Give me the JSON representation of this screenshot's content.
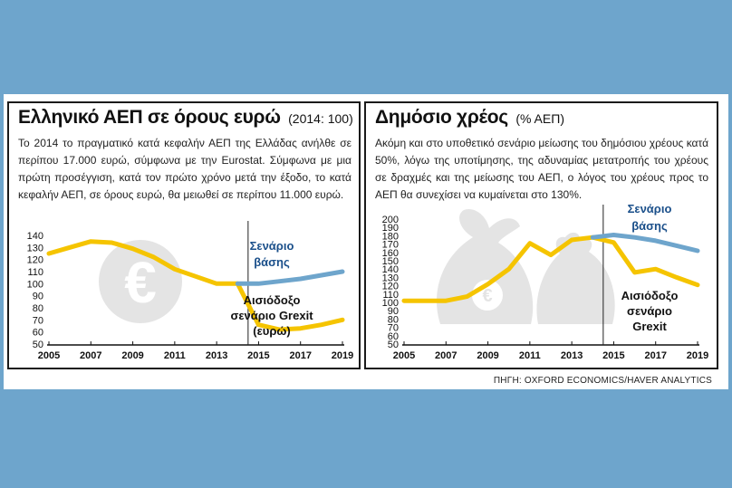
{
  "left": {
    "title": "Ελληνικό ΑΕΠ σε όρους ευρώ",
    "unit": "(2014: 100)",
    "description": "Το 2014 το πραγματικό κατά κεφαλήν ΑΕΠ της Ελλάδας ανήλθε σε περίπου 17.000 ευρώ, σύμφωνα με την Eurostat. Σύμφωνα με μια πρώτη προσέγγιση, κατά τον πρώτο χρόνο μετά την έξοδο, το κατά κεφαλήν ΑΕΠ, σε όρους ευρώ, θα μειωθεί σε περίπου 11.000 ευρώ."
  },
  "right": {
    "title": "Δημόσιο χρέος",
    "unit": "(% ΑΕΠ)",
    "description": "Ακόμη και στο υποθετικό σενάριο μείωσης του δημόσιου χρέους κατά 50%, λόγω της υποτίμησης, της αδυναμίας μετατροπής του χρέους σε δραχμές και της μείωσης του ΑΕΠ, ο λόγος του χρέους προς το ΑΕΠ θα συνεχίσει να κυμαίνεται στο 130%."
  },
  "source": "ΠΗΓΗ: OXFORD ECONOMICS/HAVER ANALYTICS",
  "colors": {
    "grexit": "#f5c400",
    "base": "#6ea5cc",
    "background": "#6ea5cc",
    "watermark": "#e4e4e4"
  },
  "chart_data": [
    {
      "type": "line",
      "x": [
        2005,
        2006,
        2007,
        2008,
        2009,
        2010,
        2011,
        2012,
        2013,
        2014,
        2015,
        2016,
        2017,
        2018,
        2019
      ],
      "xticks": [
        "2005",
        "2007",
        "2009",
        "2011",
        "2013",
        "2015",
        "2017",
        "2019"
      ],
      "yticks": [
        50,
        60,
        70,
        80,
        90,
        100,
        110,
        120,
        130,
        140
      ],
      "ylim": [
        50,
        140
      ],
      "xlim": [
        2005,
        2019
      ],
      "grid": false,
      "series": [
        {
          "name": "Αισιόδοξο σενάριο Grexit (ευρώ)",
          "label": [
            "Αισιόδοξο",
            "σενάριο Grexit",
            "(ευρώ)"
          ],
          "color": "#f5c400",
          "x": [
            2005,
            2006,
            2007,
            2008,
            2009,
            2010,
            2011,
            2012,
            2013,
            2014,
            2015,
            2016,
            2017,
            2018,
            2019
          ],
          "values": [
            125,
            130,
            135,
            134,
            129,
            122,
            112,
            106,
            100,
            100,
            66,
            62,
            63,
            66,
            70
          ]
        },
        {
          "name": "Σενάριο βάσης",
          "label": [
            "Σενάριο",
            "βάσης"
          ],
          "color": "#6ea5cc",
          "x": [
            2014,
            2015,
            2016,
            2017,
            2018,
            2019
          ],
          "values": [
            100,
            100,
            102,
            104,
            107,
            110
          ]
        }
      ],
      "divider_year": 2014.5,
      "watermark": "euro-coin-icon"
    },
    {
      "type": "line",
      "x": [
        2005,
        2006,
        2007,
        2008,
        2009,
        2010,
        2011,
        2012,
        2013,
        2014,
        2015,
        2016,
        2017,
        2018,
        2019
      ],
      "xticks": [
        "2005",
        "2007",
        "2009",
        "2011",
        "2013",
        "2015",
        "2017",
        "2019"
      ],
      "yticks": [
        50,
        60,
        70,
        80,
        90,
        100,
        110,
        120,
        130,
        140,
        150,
        160,
        170,
        180,
        190,
        200
      ],
      "ylim": [
        50,
        200
      ],
      "xlim": [
        2005,
        2019
      ],
      "grid": false,
      "series": [
        {
          "name": "Αισιόδοξο σενάριο Grexit",
          "label": [
            "Αισιόδοξο",
            "σενάριο",
            "Grexit"
          ],
          "color": "#f5c400",
          "x": [
            2005,
            2006,
            2007,
            2008,
            2009,
            2010,
            2011,
            2012,
            2013,
            2014,
            2015,
            2016,
            2017,
            2018,
            2019
          ],
          "values": [
            102,
            102,
            102,
            107,
            122,
            140,
            171,
            157,
            175,
            178,
            172,
            136,
            140,
            130,
            121
          ]
        },
        {
          "name": "Σενάριο βάσης",
          "label": [
            "Σενάριο",
            "βάσης"
          ],
          "color": "#6ea5cc",
          "x": [
            2014,
            2015,
            2016,
            2017,
            2018,
            2019
          ],
          "values": [
            178,
            181,
            178,
            174,
            168,
            162
          ]
        }
      ],
      "divider_year": 2014.5,
      "watermark": "money-bags-icon"
    }
  ]
}
